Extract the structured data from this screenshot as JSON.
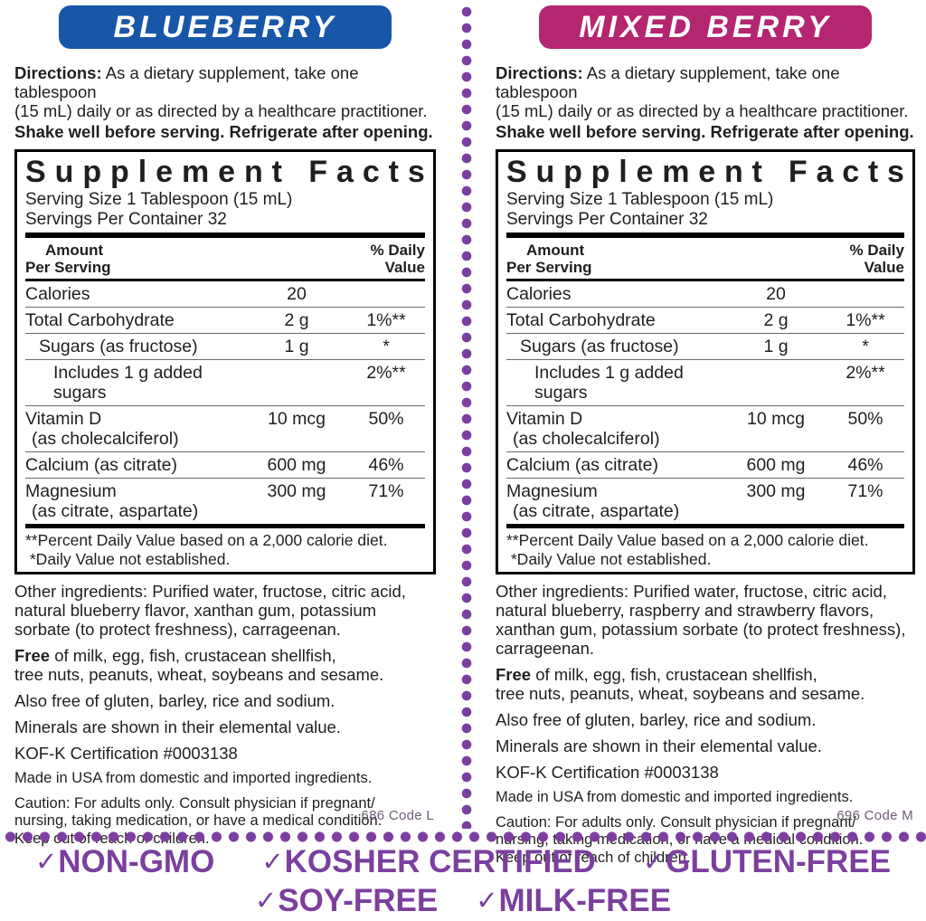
{
  "colors": {
    "blueberry_badge": "#1857a8",
    "mixed_berry_badge": "#b42670",
    "accent_purple": "#7b3f9e",
    "divider_dot_purple": "#7b3fa0",
    "code_text": "#6e5c74",
    "body_text": "#1f1f1f"
  },
  "panels": [
    {
      "flavor": "BLUEBERRY",
      "directions_label": "Directions:",
      "directions_text": " As a dietary supplement, take one tablespoon\n(15 mL) daily or as directed by a healthcare practitioner.",
      "shake_line": "Shake well before serving. Refrigerate after opening.",
      "other_ingredients": "Other ingredients: Purified water, fructose, citric acid,\nnatural blueberry flavor, xanthan gum, potassium\nsorbate (to protect freshness), carrageenan.",
      "free_label": "Free",
      "free_text": " of milk, egg, fish, crustacean shellfish,\ntree nuts, peanuts, wheat, soybeans and sesame.",
      "also_free": "Also free of gluten, barley, rice and sodium.",
      "minerals_note": "Minerals are shown in their elemental value.",
      "kosher_cert": "KOF-K Certification #0003138",
      "made_in": "Made in USA from domestic and imported ingredients.",
      "caution": "Caution: For adults only. Consult physician if pregnant/\nnursing, taking medication, or have a medical condition.\nKeep out of reach of children.",
      "code": "686 Code L"
    },
    {
      "flavor": "MIXED BERRY",
      "directions_label": "Directions:",
      "directions_text": " As a dietary supplement, take one tablespoon\n(15 mL) daily or as directed by a healthcare practitioner.",
      "shake_line": "Shake well before serving. Refrigerate after opening.",
      "other_ingredients": "Other ingredients: Purified water, fructose, citric acid,\nnatural blueberry, raspberry and strawberry flavors,\nxanthan gum, potassium sorbate (to protect freshness),\ncarrageenan.",
      "free_label": "Free",
      "free_text": " of milk, egg, fish, crustacean shellfish,\ntree nuts, peanuts, wheat, soybeans and sesame.",
      "also_free": "Also free of gluten, barley, rice and sodium.",
      "minerals_note": "Minerals are shown in their elemental value.",
      "kosher_cert": "KOF-K Certification #0003138",
      "made_in": "Made in USA from domestic and imported ingredients.",
      "caution": "Caution: For adults only. Consult physician if pregnant/\nnursing, taking medication, or have a medical condition.\nKeep out of reach of children.",
      "code": "696 Code M"
    }
  ],
  "supplement_facts": {
    "title": "Supplement Facts",
    "serving_size": "Serving Size 1 Tablespoon (15 mL)",
    "servings_per_container": "Servings Per Container 32",
    "amount_header": "Amount\nPer Serving",
    "dv_header": "% Daily\nValue",
    "rows": [
      {
        "name": "Calories",
        "sub": "",
        "amount": "20",
        "dv": "",
        "indent": 0
      },
      {
        "name": "Total Carbohydrate",
        "sub": "",
        "amount": "2 g",
        "dv": "1%**",
        "indent": 0
      },
      {
        "name": "Sugars (as fructose)",
        "sub": "",
        "amount": "1 g",
        "dv": "*",
        "indent": 1
      },
      {
        "name": "Includes 1 g added sugars",
        "sub": "",
        "amount": "",
        "dv": "2%**",
        "indent": 2
      },
      {
        "name": "Vitamin D",
        "sub": "(as cholecalciferol)",
        "amount": "10 mcg",
        "dv": "50%",
        "indent": 0
      },
      {
        "name": "Calcium (as citrate)",
        "sub": "",
        "amount": "600 mg",
        "dv": "46%",
        "indent": 0
      },
      {
        "name": "Magnesium",
        "sub": "(as citrate, aspartate)",
        "amount": "300 mg",
        "dv": "71%",
        "indent": 0
      }
    ],
    "footnotes": "**Percent Daily Value based on a 2,000 calorie diet.\n *Daily Value not established."
  },
  "footer": {
    "check": "✓",
    "row1": [
      "NON-GMO",
      "KOSHER CERTIFIED",
      "GLUTEN-FREE"
    ],
    "row2": [
      "SOY-FREE",
      "MILK-FREE"
    ]
  }
}
